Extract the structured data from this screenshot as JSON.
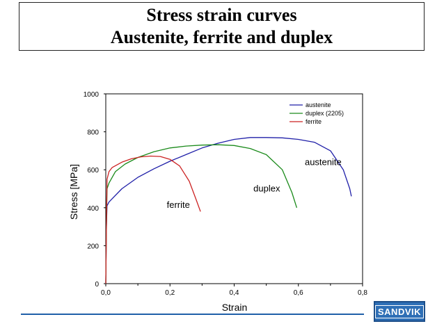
{
  "title": {
    "line1": "Stress strain curves",
    "line2": "Austenite, ferrite and duplex"
  },
  "logo": {
    "text": "SANDVIK",
    "color": "#2e6fb6"
  },
  "chart_data": {
    "type": "line",
    "xlabel": "Strain",
    "ylabel": "Stress [MPa]",
    "xlim": [
      0,
      0.8
    ],
    "ylim": [
      0,
      1000
    ],
    "x_ticks": [
      0,
      0.2,
      0.4,
      0.6,
      0.8
    ],
    "x_tick_labels": [
      "0,0",
      "0,2",
      "0,4",
      "0,6",
      "0,8"
    ],
    "y_ticks": [
      0,
      200,
      400,
      600,
      800,
      1000
    ],
    "y_tick_labels": [
      "0",
      "200",
      "400",
      "600",
      "800",
      "1000"
    ],
    "grid": false,
    "legend_position": "top-right",
    "series": [
      {
        "name": "austenite",
        "color": "#1f1fa8",
        "annotation": "austenite",
        "x": [
          0,
          0.002,
          0.004,
          0.01,
          0.05,
          0.1,
          0.15,
          0.2,
          0.25,
          0.3,
          0.35,
          0.4,
          0.45,
          0.5,
          0.55,
          0.6,
          0.65,
          0.7,
          0.74,
          0.76,
          0.765
        ],
        "y": [
          0,
          300,
          410,
          430,
          500,
          560,
          605,
          645,
          680,
          715,
          740,
          760,
          770,
          770,
          768,
          760,
          745,
          700,
          600,
          500,
          460
        ]
      },
      {
        "name": "duplex (2205)",
        "color": "#1a8a1a",
        "annotation": "duplex",
        "x": [
          0,
          0.002,
          0.004,
          0.01,
          0.03,
          0.06,
          0.1,
          0.15,
          0.2,
          0.25,
          0.3,
          0.35,
          0.4,
          0.45,
          0.5,
          0.55,
          0.58,
          0.595
        ],
        "y": [
          0,
          300,
          500,
          530,
          590,
          630,
          665,
          695,
          715,
          725,
          730,
          732,
          728,
          712,
          680,
          600,
          480,
          400
        ]
      },
      {
        "name": "ferrite",
        "color": "#cc2222",
        "annotation": "ferrite",
        "x": [
          0,
          0.002,
          0.004,
          0.01,
          0.02,
          0.05,
          0.08,
          0.11,
          0.14,
          0.17,
          0.2,
          0.23,
          0.26,
          0.28,
          0.295
        ],
        "y": [
          0,
          300,
          550,
          590,
          612,
          640,
          658,
          668,
          672,
          670,
          655,
          620,
          540,
          450,
          380
        ]
      }
    ],
    "annotations": [
      {
        "text": "ferrite",
        "x": 0.19,
        "y": 400
      },
      {
        "text": "duplex",
        "x": 0.46,
        "y": 485
      },
      {
        "text": "austenite",
        "x": 0.62,
        "y": 625
      }
    ]
  }
}
